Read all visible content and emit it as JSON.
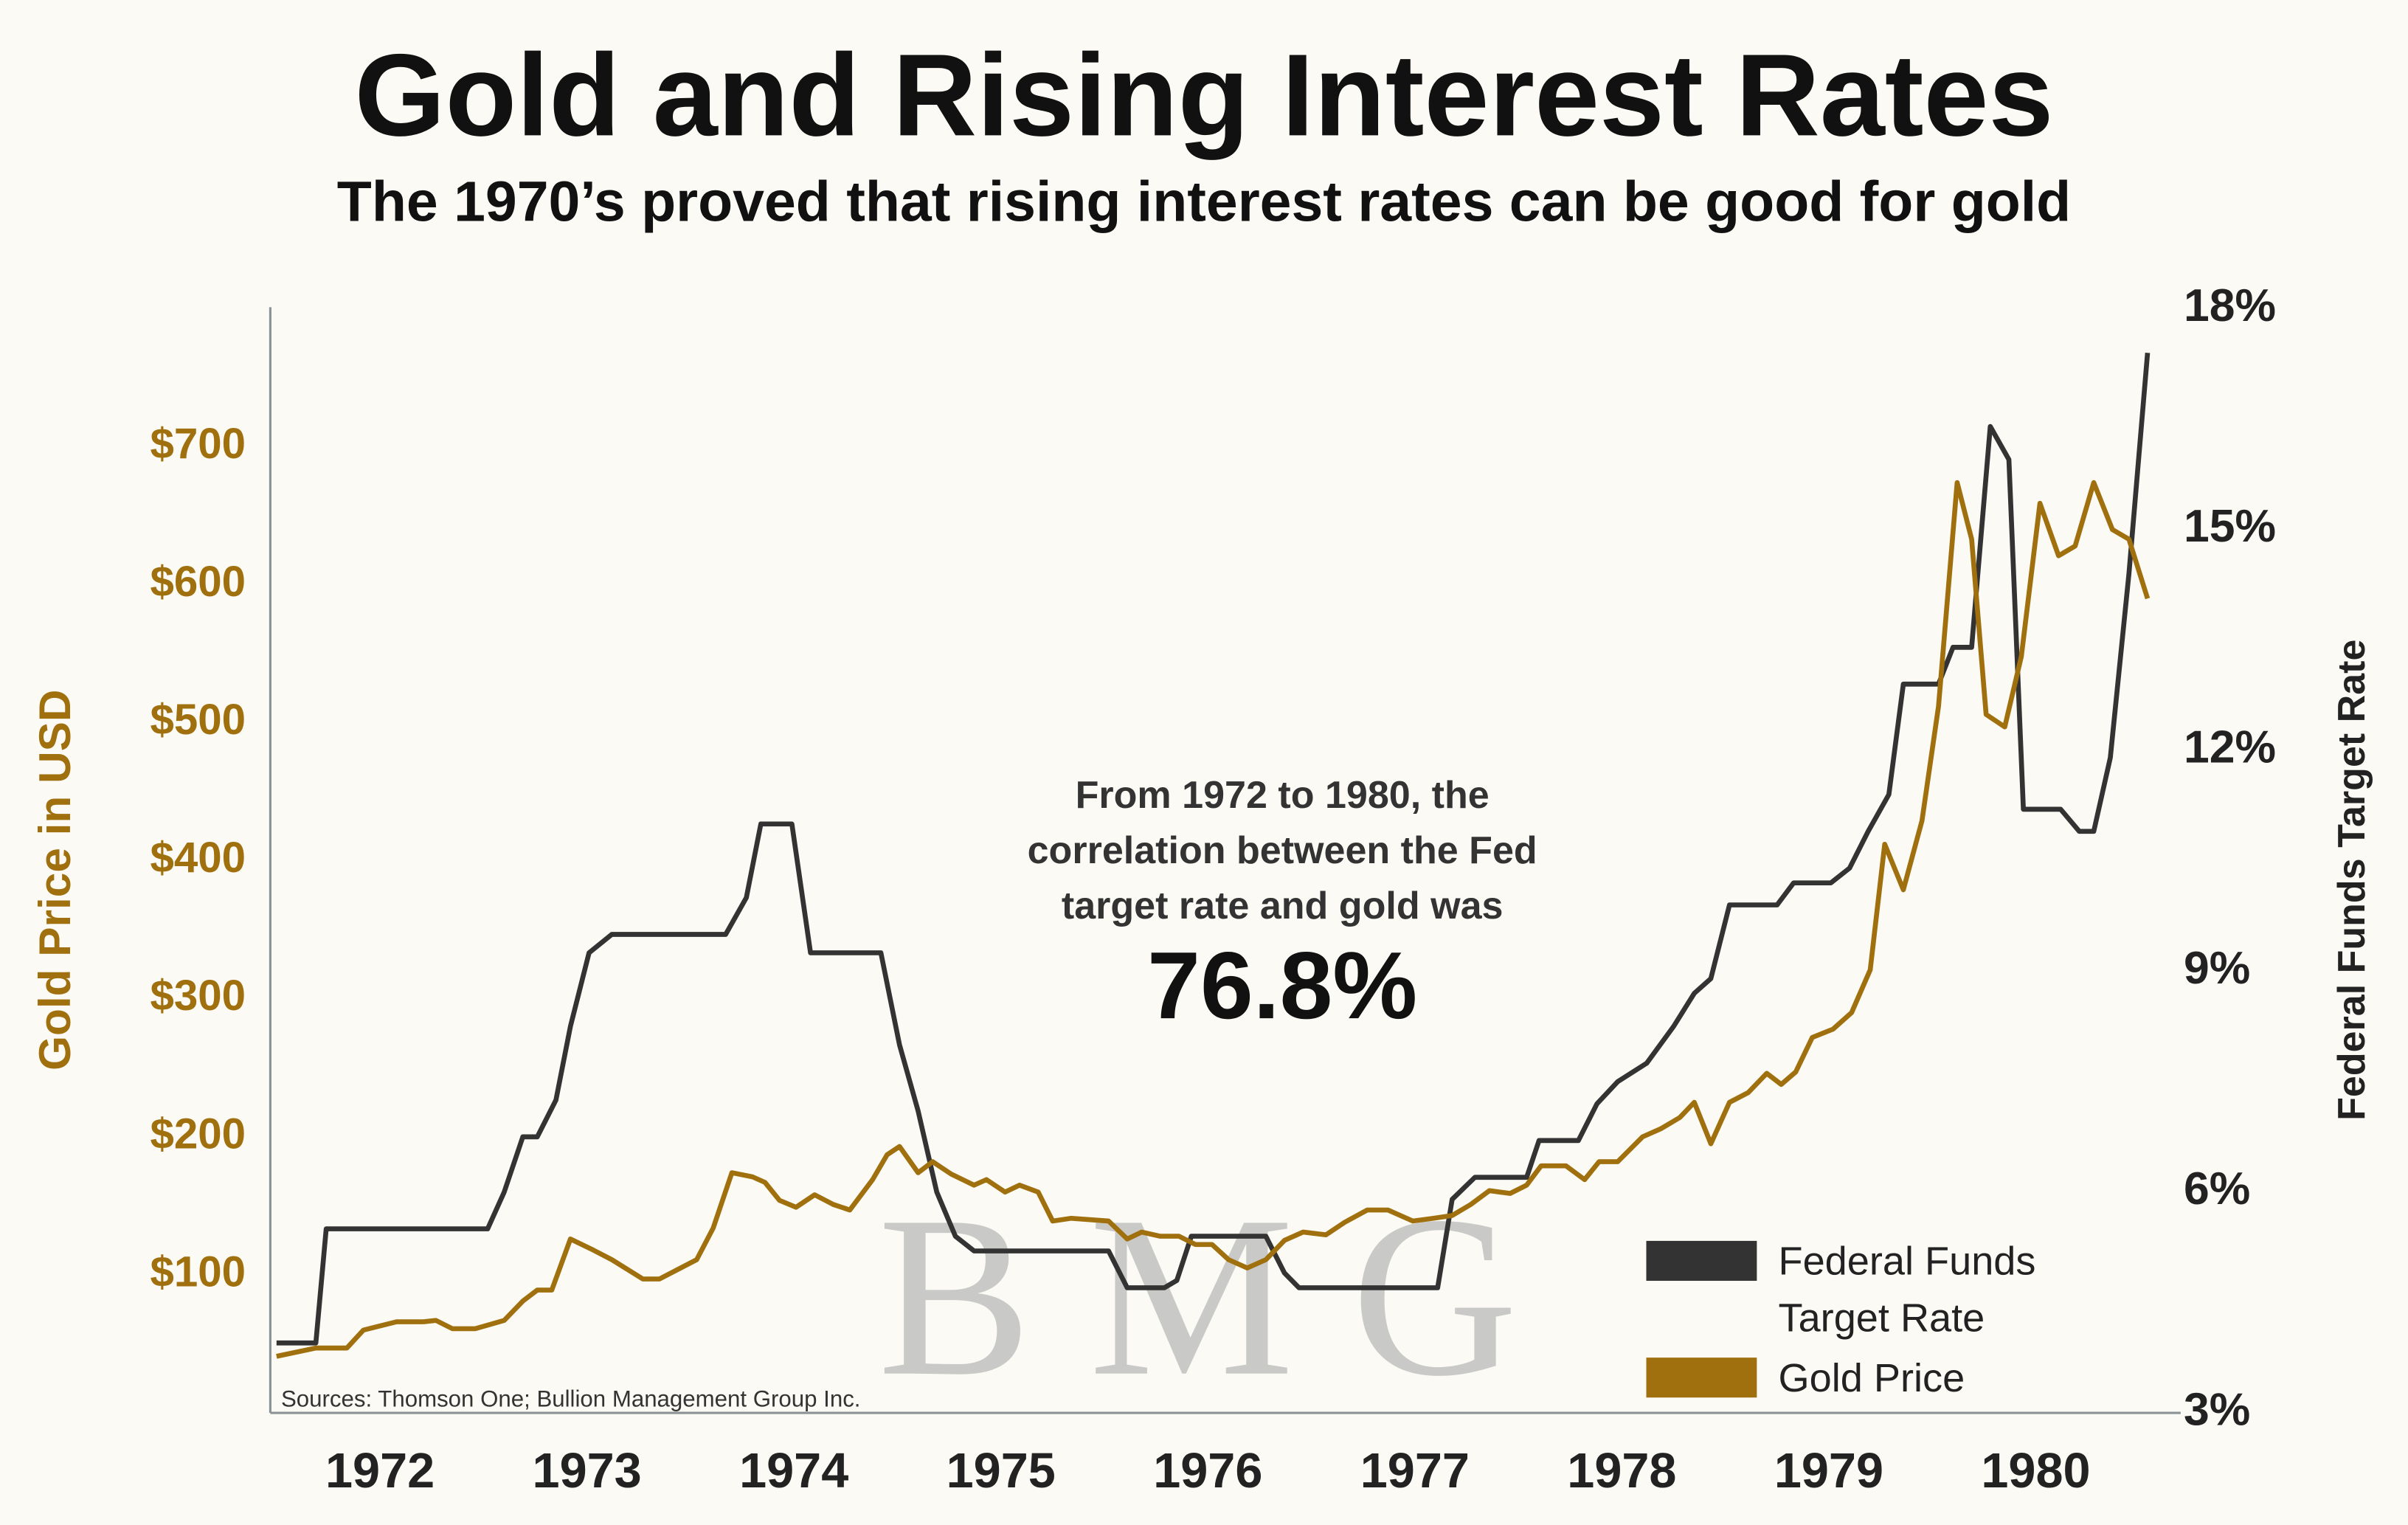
{
  "chart_data": {
    "type": "line",
    "title": "Gold and Rising Interest Rates",
    "subtitle": "The 1970’s proved that rising interest rates can be good for gold",
    "ylabel": "Gold Price in USD",
    "y2label": "Federal Funds Target Rate",
    "annotation": "From 1972 to 1980, the correlation between the Fed target rate and gold was",
    "annotation_value": "76.8%",
    "source": "Sources: Thomson One; Bullion Management Group Inc.",
    "watermark": "B M G",
    "legend": "lower right",
    "xlim": [
      1971.47,
      1980.7
    ],
    "xticks": [
      1972,
      1973,
      1974,
      1975,
      1976,
      1977,
      1978,
      1979,
      1980
    ],
    "ylim": [
      0,
      800
    ],
    "yticks": [
      {
        "value": 100,
        "label": "$100"
      },
      {
        "value": 200,
        "label": "$200"
      },
      {
        "value": 300,
        "label": "$300"
      },
      {
        "value": 400,
        "label": "$400"
      },
      {
        "value": 500,
        "label": "$500"
      },
      {
        "value": 600,
        "label": "$600"
      },
      {
        "value": 700,
        "label": "$700"
      }
    ],
    "y2lim": [
      3,
      18
    ],
    "y2ticks": [
      {
        "value": 3,
        "label": "3%"
      },
      {
        "value": 6,
        "label": "6%"
      },
      {
        "value": 9,
        "label": "9%"
      },
      {
        "value": 12,
        "label": "12%"
      },
      {
        "value": 15,
        "label": "15%"
      },
      {
        "value": 18,
        "label": "18%"
      }
    ],
    "series": [
      {
        "name": "Federal Funds Target Rate",
        "color": "#333333",
        "axis": "y2",
        "x": [
          1971.5,
          1971.69,
          1971.74,
          1972.52,
          1972.6,
          1972.69,
          1972.76,
          1972.85,
          1972.92,
          1973.01,
          1973.12,
          1973.67,
          1973.77,
          1973.84,
          1973.99,
          1974.08,
          1974.42,
          1974.51,
          1974.6,
          1974.69,
          1974.78,
          1974.87,
          1975.52,
          1975.61,
          1975.79,
          1975.85,
          1975.92,
          1976.28,
          1976.37,
          1976.44,
          1977.11,
          1977.18,
          1977.29,
          1977.54,
          1977.6,
          1977.79,
          1977.88,
          1977.98,
          1978.12,
          1978.25,
          1978.35,
          1978.43,
          1978.52,
          1978.75,
          1978.83,
          1979.01,
          1979.1,
          1979.19,
          1979.29,
          1979.36,
          1979.53,
          1979.6,
          1979.69,
          1979.78,
          1979.87,
          1979.94,
          1980.12,
          1980.21,
          1980.28,
          1980.36,
          1980.45,
          1980.54
        ],
        "values": [
          3.95,
          3.95,
          5.5,
          5.5,
          6,
          6.75,
          6.75,
          7.25,
          8.25,
          9.25,
          9.5,
          9.5,
          10,
          11,
          11,
          9.25,
          9.25,
          8,
          7.1,
          6,
          5.4,
          5.2,
          5.2,
          4.7,
          4.7,
          4.8,
          5.4,
          5.4,
          4.9,
          4.7,
          4.7,
          5.9,
          6.2,
          6.2,
          6.7,
          6.7,
          7.2,
          7.5,
          7.75,
          8.25,
          8.7,
          8.9,
          9.9,
          9.9,
          10.2,
          10.2,
          10.4,
          10.9,
          11.4,
          12.9,
          12.9,
          13.4,
          13.4,
          16.4,
          15.95,
          11.2,
          11.2,
          10.9,
          10.9,
          11.9,
          14.4,
          17.4
        ]
      },
      {
        "name": "Gold Price (USD)",
        "color": "#a0700e",
        "axis": "y",
        "x": [
          1971.5,
          1971.69,
          1971.84,
          1971.92,
          1972.08,
          1972.21,
          1972.27,
          1972.35,
          1972.46,
          1972.6,
          1972.69,
          1972.76,
          1972.83,
          1972.92,
          1973.03,
          1973.12,
          1973.27,
          1973.35,
          1973.53,
          1973.61,
          1973.7,
          1973.8,
          1973.86,
          1973.93,
          1974.01,
          1974.1,
          1974.19,
          1974.27,
          1974.38,
          1974.45,
          1974.51,
          1974.6,
          1974.67,
          1974.76,
          1974.87,
          1974.93,
          1975.02,
          1975.09,
          1975.18,
          1975.25,
          1975.34,
          1975.52,
          1975.61,
          1975.68,
          1975.77,
          1975.86,
          1975.94,
          1976.02,
          1976.1,
          1976.19,
          1976.28,
          1976.37,
          1976.46,
          1976.57,
          1976.66,
          1976.77,
          1976.87,
          1976.99,
          1977.09,
          1977.18,
          1977.27,
          1977.36,
          1977.46,
          1977.54,
          1977.61,
          1977.73,
          1977.82,
          1977.89,
          1977.98,
          1978.1,
          1978.19,
          1978.28,
          1978.35,
          1978.43,
          1978.52,
          1978.61,
          1978.7,
          1978.77,
          1978.84,
          1978.92,
          1979.02,
          1979.11,
          1979.2,
          1979.27,
          1979.36,
          1979.45,
          1979.53,
          1979.62,
          1979.69,
          1979.76,
          1979.85,
          1979.93,
          1980.02,
          1980.11,
          1980.19,
          1980.28,
          1980.37,
          1980.45,
          1980.54
        ],
        "values": [
          41,
          47,
          47,
          60,
          66,
          66,
          67,
          61,
          61,
          67,
          81,
          89,
          89,
          126,
          118,
          111,
          97,
          97,
          111,
          134,
          174,
          171,
          167,
          154,
          149,
          158,
          151,
          147,
          169,
          187,
          193,
          174,
          182,
          173,
          165,
          169,
          160,
          165,
          160,
          139,
          141,
          139,
          126,
          131,
          128,
          128,
          122,
          122,
          111,
          105,
          111,
          125,
          131,
          129,
          138,
          147,
          147,
          139,
          141,
          143,
          151,
          161,
          159,
          165,
          179,
          179,
          169,
          182,
          182,
          200,
          206,
          214,
          225,
          195,
          225,
          232,
          246,
          238,
          247,
          272,
          278,
          290,
          321,
          412,
          379,
          429,
          512,
          674,
          633,
          506,
          497,
          548,
          659,
          621,
          628,
          674,
          640,
          633,
          590
        ]
      }
    ]
  }
}
